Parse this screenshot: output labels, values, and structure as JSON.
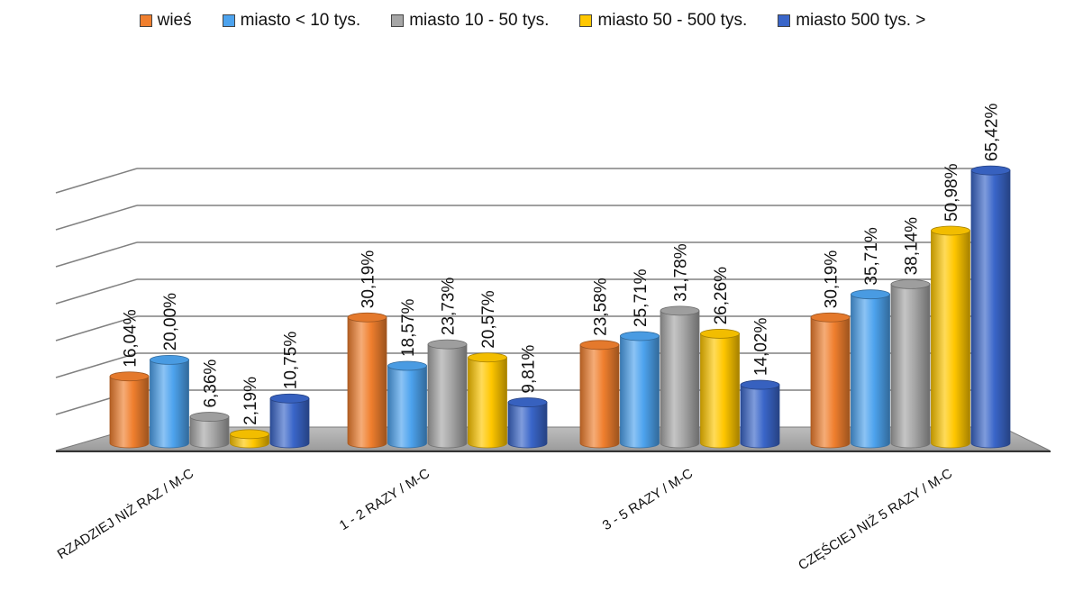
{
  "chart_data": {
    "type": "bar",
    "categories": [
      "RZADZIEJ NIŻ RAZ / M-C",
      "1 - 2 RAZY / M-C",
      "3 - 5 RAZY / M-C",
      "CZĘŚCIEJ NIŻ 5 RAZY / M-C"
    ],
    "series": [
      {
        "name": "wieś",
        "color": "#F07F2E",
        "values": [
          16.04,
          30.19,
          23.58,
          30.19
        ],
        "labels": [
          "16,04%",
          "30,19%",
          "23,58%",
          "30,19%"
        ]
      },
      {
        "name": "miasto < 10 tys.",
        "color": "#4DA3EE",
        "values": [
          20.0,
          18.57,
          25.71,
          35.71
        ],
        "labels": [
          "20,00%",
          "18,57%",
          "25,71%",
          "35,71%"
        ]
      },
      {
        "name": "miasto 10 - 50 tys.",
        "color": "#A6A6A6",
        "values": [
          6.36,
          23.73,
          31.78,
          38.14
        ],
        "labels": [
          "6,36%",
          "23,73%",
          "31,78%",
          "38,14%"
        ]
      },
      {
        "name": "miasto 50 - 500 tys.",
        "color": "#FFC700",
        "values": [
          2.19,
          20.57,
          26.26,
          50.98
        ],
        "labels": [
          "2,19%",
          "20,57%",
          "26,26%",
          "50,98%"
        ]
      },
      {
        "name": "miasto 500 tys. >",
        "color": "#3A66C9",
        "values": [
          10.75,
          9.81,
          14.02,
          65.42
        ],
        "labels": [
          "10,75%",
          "9,81%",
          "14,02%",
          "65,42%"
        ]
      }
    ],
    "ylim": [
      0,
      70
    ],
    "grid": true,
    "legend_position": "top",
    "style": "3d-cylinder"
  }
}
